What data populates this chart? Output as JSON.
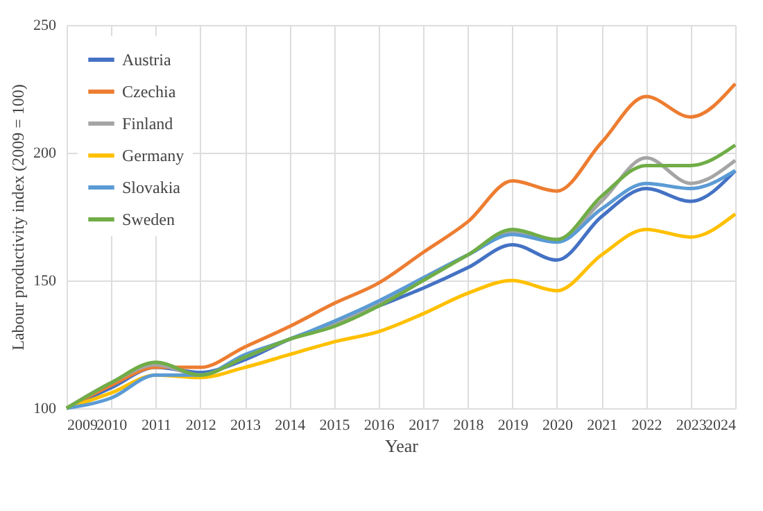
{
  "chart_data": {
    "type": "line",
    "xlabel": "Year",
    "ylabel": "Labour productivity index (2009 = 100)",
    "x": [
      2009,
      2010,
      2011,
      2012,
      2013,
      2014,
      2015,
      2016,
      2017,
      2018,
      2019,
      2020,
      2021,
      2022,
      2023,
      2024
    ],
    "xlim": [
      2009,
      2024
    ],
    "xticks": [
      2009,
      2010,
      2011,
      2012,
      2013,
      2014,
      2015,
      2016,
      2017,
      2018,
      2019,
      2020,
      2021,
      2022,
      2023,
      2024
    ],
    "ylim": [
      100,
      250
    ],
    "yticks": [
      100,
      150,
      200,
      250
    ],
    "grid": true,
    "legend": "top left",
    "marker": "none",
    "line_style": "solid",
    "series": [
      {
        "name": "Austria",
        "color": "#4472c4",
        "values": [
          100,
          108,
          116,
          114,
          119,
          127,
          133,
          140,
          147,
          155,
          164,
          158,
          175,
          186,
          181,
          193
        ]
      },
      {
        "name": "Czechia",
        "color": "#ed7d31",
        "values": [
          100,
          109,
          116,
          116,
          124,
          132,
          141,
          149,
          161,
          173,
          189,
          185,
          204,
          222,
          214,
          227
        ]
      },
      {
        "name": "Finland",
        "color": "#a5a5a5",
        "values": [
          100,
          110,
          117,
          113,
          120,
          127,
          133,
          141,
          151,
          160,
          169,
          166,
          181,
          198,
          188,
          197
        ]
      },
      {
        "name": "Germany",
        "color": "#ffc000",
        "values": [
          100,
          106,
          113,
          112,
          116,
          121,
          126,
          130,
          137,
          145,
          150,
          146,
          160,
          170,
          167,
          176
        ]
      },
      {
        "name": "Slovakia",
        "color": "#5b9bd5",
        "values": [
          100,
          104,
          113,
          113,
          121,
          127,
          134,
          142,
          151,
          160,
          168,
          165,
          178,
          188,
          186,
          193
        ]
      },
      {
        "name": "Sweden",
        "color": "#70ad47",
        "values": [
          100,
          110,
          118,
          113,
          120,
          127,
          132,
          140,
          150,
          160,
          170,
          166,
          183,
          195,
          195,
          203
        ]
      }
    ]
  }
}
